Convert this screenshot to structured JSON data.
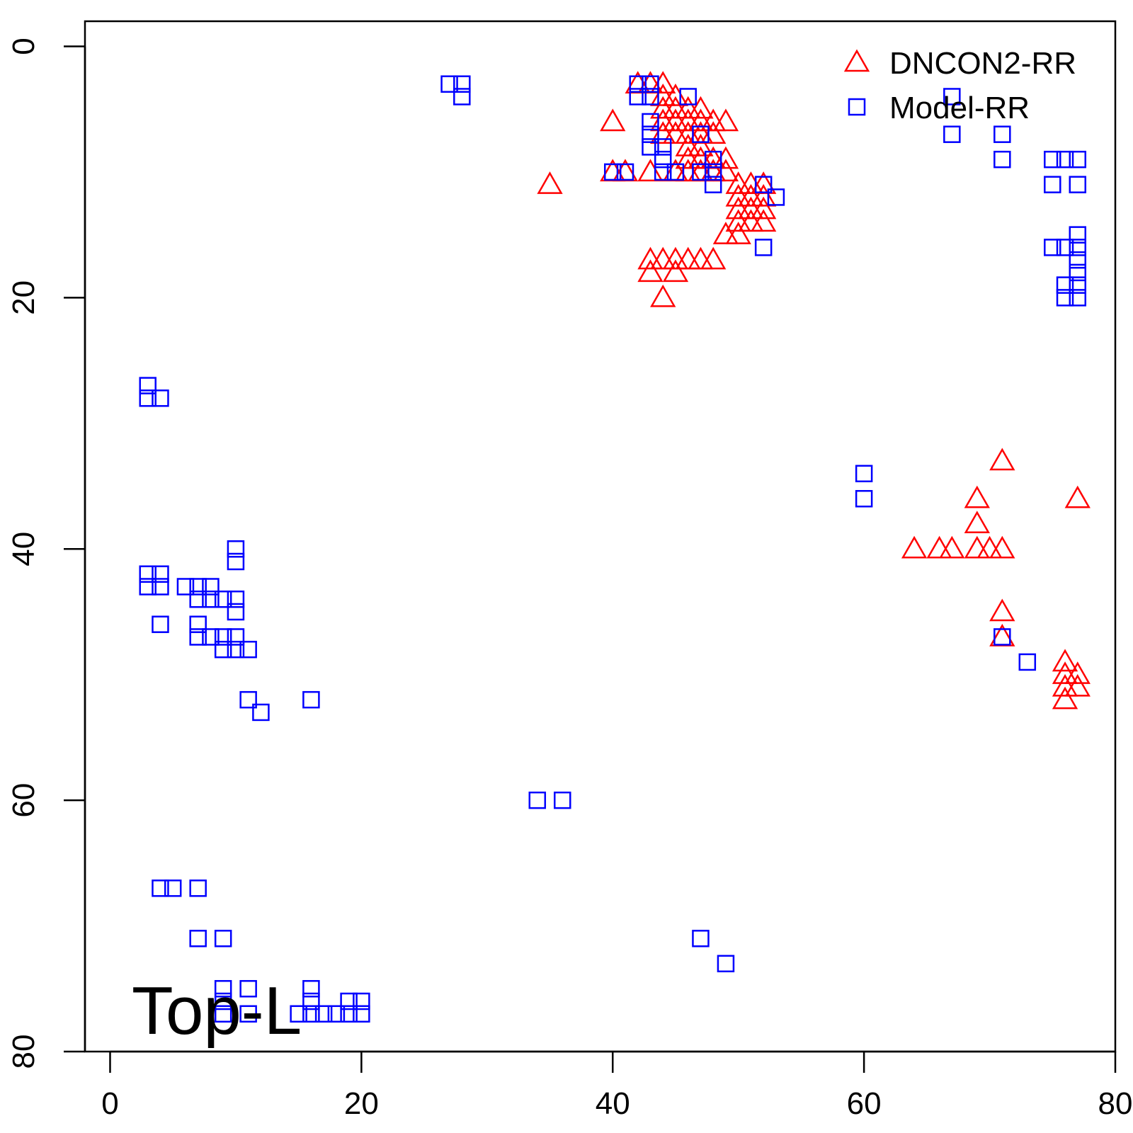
{
  "chart_data": {
    "type": "scatter",
    "annotation": "Top-L",
    "xlim": [
      -2,
      80
    ],
    "ylim": [
      -2,
      80
    ],
    "y_inverted": true,
    "x_ticks": [
      0,
      20,
      40,
      60,
      80
    ],
    "y_ticks": [
      0,
      20,
      40,
      60,
      80
    ],
    "legend_position": "top-right",
    "series": [
      {
        "name": "DNCON2-RR",
        "marker": "triangle",
        "color": "#ff0000",
        "points": [
          [
            42,
            3
          ],
          [
            43,
            3
          ],
          [
            44,
            3
          ],
          [
            44,
            4
          ],
          [
            45,
            4
          ],
          [
            44,
            5
          ],
          [
            45,
            5
          ],
          [
            46,
            5
          ],
          [
            47,
            5
          ],
          [
            40,
            6
          ],
          [
            44,
            6
          ],
          [
            45,
            6
          ],
          [
            46,
            6
          ],
          [
            47,
            6
          ],
          [
            48,
            6
          ],
          [
            49,
            6
          ],
          [
            44,
            7
          ],
          [
            45,
            7
          ],
          [
            46,
            7
          ],
          [
            47,
            7
          ],
          [
            48,
            7
          ],
          [
            46,
            8
          ],
          [
            47,
            8
          ],
          [
            46,
            9
          ],
          [
            47,
            9
          ],
          [
            48,
            9
          ],
          [
            49,
            9
          ],
          [
            40,
            10
          ],
          [
            41,
            10
          ],
          [
            43,
            10
          ],
          [
            45,
            10
          ],
          [
            46,
            10
          ],
          [
            47,
            10
          ],
          [
            48,
            10
          ],
          [
            49,
            10
          ],
          [
            35,
            11
          ],
          [
            50,
            11
          ],
          [
            51,
            11
          ],
          [
            52,
            11
          ],
          [
            50,
            12
          ],
          [
            51,
            12
          ],
          [
            52,
            12
          ],
          [
            50,
            13
          ],
          [
            51,
            13
          ],
          [
            52,
            13
          ],
          [
            50,
            14
          ],
          [
            51,
            14
          ],
          [
            52,
            14
          ],
          [
            49,
            15
          ],
          [
            50,
            15
          ],
          [
            43,
            17
          ],
          [
            44,
            17
          ],
          [
            45,
            17
          ],
          [
            46,
            17
          ],
          [
            47,
            17
          ],
          [
            48,
            17
          ],
          [
            43,
            18
          ],
          [
            45,
            18
          ],
          [
            44,
            20
          ],
          [
            71,
            33
          ],
          [
            69,
            36
          ],
          [
            77,
            36
          ],
          [
            69,
            38
          ],
          [
            64,
            40
          ],
          [
            66,
            40
          ],
          [
            67,
            40
          ],
          [
            69,
            40
          ],
          [
            70,
            40
          ],
          [
            71,
            40
          ],
          [
            71,
            45
          ],
          [
            71,
            47
          ],
          [
            76,
            49
          ],
          [
            76,
            50
          ],
          [
            77,
            50
          ],
          [
            76,
            51
          ],
          [
            77,
            51
          ],
          [
            76,
            52
          ]
        ]
      },
      {
        "name": "Model-RR",
        "marker": "square",
        "color": "#0000ff",
        "points": [
          [
            27,
            3
          ],
          [
            28,
            3
          ],
          [
            28,
            4
          ],
          [
            42,
            3
          ],
          [
            43,
            3
          ],
          [
            42,
            4
          ],
          [
            43,
            4
          ],
          [
            46,
            4
          ],
          [
            43,
            6
          ],
          [
            43,
            7
          ],
          [
            47,
            7
          ],
          [
            43,
            8
          ],
          [
            44,
            8
          ],
          [
            44,
            9
          ],
          [
            48,
            9
          ],
          [
            40,
            10
          ],
          [
            41,
            10
          ],
          [
            44,
            10
          ],
          [
            45,
            10
          ],
          [
            47,
            10
          ],
          [
            48,
            10
          ],
          [
            48,
            11
          ],
          [
            52,
            11
          ],
          [
            53,
            12
          ],
          [
            52,
            16
          ],
          [
            67,
            4
          ],
          [
            67,
            7
          ],
          [
            71,
            7
          ],
          [
            71,
            9
          ],
          [
            75,
            9
          ],
          [
            76,
            9
          ],
          [
            77,
            9
          ],
          [
            75,
            11
          ],
          [
            77,
            11
          ],
          [
            77,
            15
          ],
          [
            75,
            16
          ],
          [
            76,
            16
          ],
          [
            77,
            16
          ],
          [
            77,
            17
          ],
          [
            77,
            18
          ],
          [
            76,
            19
          ],
          [
            77,
            19
          ],
          [
            76,
            20
          ],
          [
            77,
            20
          ],
          [
            3,
            27
          ],
          [
            3,
            28
          ],
          [
            4,
            28
          ],
          [
            60,
            34
          ],
          [
            60,
            36
          ],
          [
            10,
            40
          ],
          [
            10,
            41
          ],
          [
            3,
            42
          ],
          [
            4,
            42
          ],
          [
            3,
            43
          ],
          [
            4,
            43
          ],
          [
            6,
            43
          ],
          [
            7,
            43
          ],
          [
            8,
            43
          ],
          [
            7,
            44
          ],
          [
            8,
            44
          ],
          [
            9,
            44
          ],
          [
            10,
            44
          ],
          [
            10,
            45
          ],
          [
            4,
            46
          ],
          [
            7,
            46
          ],
          [
            7,
            47
          ],
          [
            8,
            47
          ],
          [
            9,
            47
          ],
          [
            10,
            47
          ],
          [
            71,
            47
          ],
          [
            9,
            48
          ],
          [
            10,
            48
          ],
          [
            11,
            48
          ],
          [
            73,
            49
          ],
          [
            11,
            52
          ],
          [
            16,
            52
          ],
          [
            12,
            53
          ],
          [
            34,
            60
          ],
          [
            36,
            60
          ],
          [
            4,
            67
          ],
          [
            5,
            67
          ],
          [
            7,
            67
          ],
          [
            7,
            71
          ],
          [
            9,
            71
          ],
          [
            47,
            71
          ],
          [
            49,
            73
          ],
          [
            9,
            75
          ],
          [
            11,
            75
          ],
          [
            16,
            75
          ],
          [
            9,
            76
          ],
          [
            16,
            76
          ],
          [
            19,
            76
          ],
          [
            20,
            76
          ],
          [
            9,
            77
          ],
          [
            11,
            77
          ],
          [
            15,
            77
          ],
          [
            16,
            77
          ],
          [
            17,
            77
          ],
          [
            18,
            77
          ],
          [
            19,
            77
          ],
          [
            20,
            77
          ]
        ]
      }
    ]
  }
}
